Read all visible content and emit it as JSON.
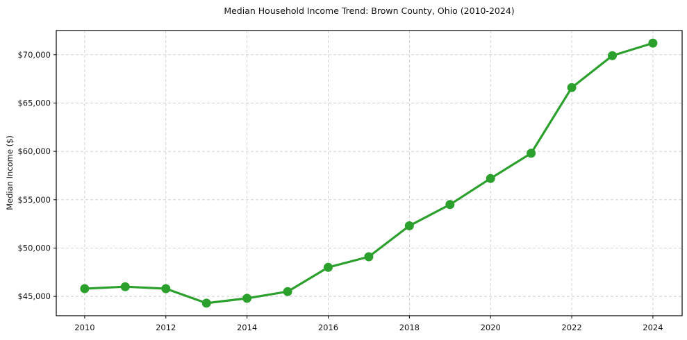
{
  "chart_data": {
    "type": "line",
    "title": "Median Household Income Trend: Brown County, Ohio (2010-2024)",
    "xlabel": "",
    "ylabel": "Median Income ($)",
    "x": [
      2010,
      2011,
      2012,
      2013,
      2014,
      2015,
      2016,
      2017,
      2018,
      2019,
      2020,
      2021,
      2022,
      2023,
      2024
    ],
    "values": [
      45800,
      46000,
      45800,
      44300,
      44800,
      45500,
      48000,
      49100,
      52300,
      54500,
      57200,
      59800,
      66600,
      69900,
      71200
    ],
    "series_name": "Median household income",
    "xticks": {
      "values": [
        2010,
        2012,
        2014,
        2016,
        2018,
        2020,
        2022,
        2024
      ],
      "labels": [
        "2010",
        "2012",
        "2014",
        "2016",
        "2018",
        "2020",
        "2022",
        "2024"
      ]
    },
    "yticks": {
      "values": [
        45000,
        50000,
        55000,
        60000,
        65000,
        70000
      ],
      "labels": [
        "$45,000",
        "$50,000",
        "$55,000",
        "$60,000",
        "$65,000",
        "$70,000"
      ]
    },
    "xlim": [
      2009.3,
      2024.72
    ],
    "ylim": [
      43000,
      72500
    ],
    "grid": true,
    "grid_style": "dashed",
    "legend": "none",
    "line_color": "#2ca02c",
    "marker_color": "#2ca02c",
    "marker": "o",
    "grid_color": "#cccccc",
    "spine_color": "#000000",
    "background_color": "#ffffff"
  }
}
